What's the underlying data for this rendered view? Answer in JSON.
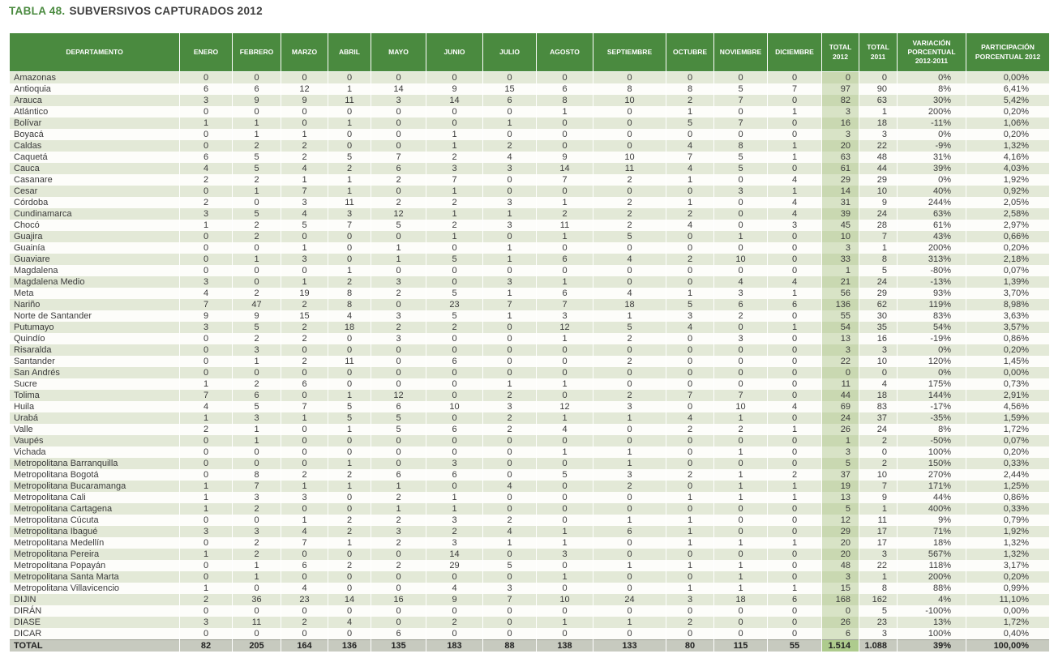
{
  "title": {
    "label": "TABLA 48.",
    "text": "SUBVERSIVOS CAPTURADOS 2012"
  },
  "colors": {
    "green": "#4a8a3f",
    "title_text": "#3d3d3d",
    "header_text": "#ffffff",
    "text": "#3a3a3a",
    "row_tint": "#e3e9d7",
    "row_plain": "#fdfdfa",
    "t12_tint": "#c9d8b1",
    "t12_plain": "#d8e3c6",
    "total_bg": "#c7cabf",
    "total_t12": "#aecb8d"
  },
  "table": {
    "columns": [
      {
        "key": "departamento",
        "label": "DEPARTAMENTO"
      },
      {
        "key": "enero",
        "label": "ENERO"
      },
      {
        "key": "febrero",
        "label": "FEBRERO"
      },
      {
        "key": "marzo",
        "label": "MARZO"
      },
      {
        "key": "abril",
        "label": "ABRIL"
      },
      {
        "key": "mayo",
        "label": "MAYO"
      },
      {
        "key": "junio",
        "label": "JUNIO"
      },
      {
        "key": "julio",
        "label": "JULIO"
      },
      {
        "key": "agosto",
        "label": "AGOSTO"
      },
      {
        "key": "septiembre",
        "label": "SEPTIEMBRE"
      },
      {
        "key": "octubre",
        "label": "OCTUBRE"
      },
      {
        "key": "noviembre",
        "label": "NOVIEMBRE"
      },
      {
        "key": "diciembre",
        "label": "DICIEMBRE"
      },
      {
        "key": "total_2012",
        "label": "TOTAL\n2012"
      },
      {
        "key": "total_2011",
        "label": "TOTAL\n2011"
      },
      {
        "key": "variacion_porcentual",
        "label": "VARIACIÓN\nPORCENTUAL\n2012-2011"
      },
      {
        "key": "participacion_porcentual",
        "label": "PARTICIPACIÓN\nPORCENTUAL 2012"
      }
    ],
    "rows": [
      [
        "Amazonas",
        0,
        0,
        0,
        0,
        0,
        0,
        0,
        0,
        0,
        0,
        0,
        0,
        "0",
        "0",
        "0%",
        "0,00%"
      ],
      [
        "Antioquia",
        6,
        6,
        12,
        1,
        14,
        9,
        15,
        6,
        8,
        8,
        5,
        7,
        "97",
        "90",
        "8%",
        "6,41%"
      ],
      [
        "Arauca",
        3,
        9,
        9,
        11,
        3,
        14,
        6,
        8,
        10,
        2,
        7,
        0,
        "82",
        "63",
        "30%",
        "5,42%"
      ],
      [
        "Atlántico",
        0,
        0,
        0,
        0,
        0,
        0,
        0,
        1,
        0,
        1,
        0,
        1,
        "3",
        "1",
        "200%",
        "0,20%"
      ],
      [
        "Bolívar",
        1,
        1,
        0,
        1,
        0,
        0,
        1,
        0,
        0,
        5,
        7,
        0,
        "16",
        "18",
        "-11%",
        "1,06%"
      ],
      [
        "Boyacá",
        0,
        1,
        1,
        0,
        0,
        1,
        0,
        0,
        0,
        0,
        0,
        0,
        "3",
        "3",
        "0%",
        "0,20%"
      ],
      [
        "Caldas",
        0,
        2,
        2,
        0,
        0,
        1,
        2,
        0,
        0,
        4,
        8,
        1,
        "20",
        "22",
        "-9%",
        "1,32%"
      ],
      [
        "Caquetá",
        6,
        5,
        2,
        5,
        7,
        2,
        4,
        9,
        10,
        7,
        5,
        1,
        "63",
        "48",
        "31%",
        "4,16%"
      ],
      [
        "Cauca",
        4,
        5,
        4,
        2,
        6,
        3,
        3,
        14,
        11,
        4,
        5,
        0,
        "61",
        "44",
        "39%",
        "4,03%"
      ],
      [
        "Casanare",
        2,
        2,
        1,
        1,
        2,
        7,
        0,
        7,
        2,
        1,
        0,
        4,
        "29",
        "29",
        "0%",
        "1,92%"
      ],
      [
        "Cesar",
        0,
        1,
        7,
        1,
        0,
        1,
        0,
        0,
        0,
        0,
        3,
        1,
        "14",
        "10",
        "40%",
        "0,92%"
      ],
      [
        "Córdoba",
        2,
        0,
        3,
        11,
        2,
        2,
        3,
        1,
        2,
        1,
        0,
        4,
        "31",
        "9",
        "244%",
        "2,05%"
      ],
      [
        "Cundinamarca",
        3,
        5,
        4,
        3,
        12,
        1,
        1,
        2,
        2,
        2,
        0,
        4,
        "39",
        "24",
        "63%",
        "2,58%"
      ],
      [
        "Chocó",
        1,
        2,
        5,
        7,
        5,
        2,
        3,
        11,
        2,
        4,
        0,
        3,
        "45",
        "28",
        "61%",
        "2,97%"
      ],
      [
        "Guajira",
        0,
        2,
        0,
        0,
        0,
        1,
        0,
        1,
        5,
        0,
        1,
        0,
        "10",
        "7",
        "43%",
        "0,66%"
      ],
      [
        "Guainía",
        0,
        0,
        1,
        0,
        1,
        0,
        1,
        0,
        0,
        0,
        0,
        0,
        "3",
        "1",
        "200%",
        "0,20%"
      ],
      [
        "Guaviare",
        0,
        1,
        3,
        0,
        1,
        5,
        1,
        6,
        4,
        2,
        10,
        0,
        "33",
        "8",
        "313%",
        "2,18%"
      ],
      [
        "Magdalena",
        0,
        0,
        0,
        1,
        0,
        0,
        0,
        0,
        0,
        0,
        0,
        0,
        "1",
        "5",
        "-80%",
        "0,07%"
      ],
      [
        "Magdalena Medio",
        3,
        0,
        1,
        2,
        3,
        0,
        3,
        1,
        0,
        0,
        4,
        4,
        "21",
        "24",
        "-13%",
        "1,39%"
      ],
      [
        "Meta",
        4,
        2,
        19,
        8,
        2,
        5,
        1,
        6,
        4,
        1,
        3,
        1,
        "56",
        "29",
        "93%",
        "3,70%"
      ],
      [
        "Nariño",
        7,
        47,
        2,
        8,
        0,
        23,
        7,
        7,
        18,
        5,
        6,
        6,
        "136",
        "62",
        "119%",
        "8,98%"
      ],
      [
        "Norte de Santander",
        9,
        9,
        15,
        4,
        3,
        5,
        1,
        3,
        1,
        3,
        2,
        0,
        "55",
        "30",
        "83%",
        "3,63%"
      ],
      [
        "Putumayo",
        3,
        5,
        2,
        18,
        2,
        2,
        0,
        12,
        5,
        4,
        0,
        1,
        "54",
        "35",
        "54%",
        "3,57%"
      ],
      [
        "Quindío",
        0,
        2,
        2,
        0,
        3,
        0,
        0,
        1,
        2,
        0,
        3,
        0,
        "13",
        "16",
        "-19%",
        "0,86%"
      ],
      [
        "Risaralda",
        0,
        3,
        0,
        0,
        0,
        0,
        0,
        0,
        0,
        0,
        0,
        0,
        "3",
        "3",
        "0%",
        "0,20%"
      ],
      [
        "Santander",
        0,
        1,
        2,
        11,
        0,
        6,
        0,
        0,
        2,
        0,
        0,
        0,
        "22",
        "10",
        "120%",
        "1,45%"
      ],
      [
        "San Andrés",
        0,
        0,
        0,
        0,
        0,
        0,
        0,
        0,
        0,
        0,
        0,
        0,
        "0",
        "0",
        "0%",
        "0,00%"
      ],
      [
        "Sucre",
        1,
        2,
        6,
        0,
        0,
        0,
        1,
        1,
        0,
        0,
        0,
        0,
        "11",
        "4",
        "175%",
        "0,73%"
      ],
      [
        "Tolima",
        7,
        6,
        0,
        1,
        12,
        0,
        2,
        0,
        2,
        7,
        7,
        0,
        "44",
        "18",
        "144%",
        "2,91%"
      ],
      [
        "Huila",
        4,
        5,
        7,
        5,
        6,
        10,
        3,
        12,
        3,
        0,
        10,
        4,
        "69",
        "83",
        "-17%",
        "4,56%"
      ],
      [
        "Urabá",
        1,
        3,
        1,
        5,
        5,
        0,
        2,
        1,
        1,
        4,
        1,
        0,
        "24",
        "37",
        "-35%",
        "1,59%"
      ],
      [
        "Valle",
        2,
        1,
        0,
        1,
        5,
        6,
        2,
        4,
        0,
        2,
        2,
        1,
        "26",
        "24",
        "8%",
        "1,72%"
      ],
      [
        "Vaupés",
        0,
        1,
        0,
        0,
        0,
        0,
        0,
        0,
        0,
        0,
        0,
        0,
        "1",
        "2",
        "-50%",
        "0,07%"
      ],
      [
        "Vichada",
        0,
        0,
        0,
        0,
        0,
        0,
        0,
        1,
        1,
        0,
        1,
        0,
        "3",
        "0",
        "100%",
        "0,20%"
      ],
      [
        "Metropolitana Barranquilla",
        0,
        0,
        0,
        1,
        0,
        3,
        0,
        0,
        1,
        0,
        0,
        0,
        "5",
        "2",
        "150%",
        "0,33%"
      ],
      [
        "Metropolitana Bogotá",
        0,
        8,
        2,
        2,
        6,
        6,
        0,
        5,
        3,
        2,
        1,
        2,
        "37",
        "10",
        "270%",
        "2,44%"
      ],
      [
        "Metropolitana Bucaramanga",
        1,
        7,
        1,
        1,
        1,
        0,
        4,
        0,
        2,
        0,
        1,
        1,
        "19",
        "7",
        "171%",
        "1,25%"
      ],
      [
        "Metropolitana Cali",
        1,
        3,
        3,
        0,
        2,
        1,
        0,
        0,
        0,
        1,
        1,
        1,
        "13",
        "9",
        "44%",
        "0,86%"
      ],
      [
        "Metropolitana Cartagena",
        1,
        2,
        0,
        0,
        1,
        1,
        0,
        0,
        0,
        0,
        0,
        0,
        "5",
        "1",
        "400%",
        "0,33%"
      ],
      [
        "Metropolitana Cúcuta",
        0,
        0,
        1,
        2,
        2,
        3,
        2,
        0,
        1,
        1,
        0,
        0,
        "12",
        "11",
        "9%",
        "0,79%"
      ],
      [
        "Metropolitana Ibagué",
        3,
        3,
        4,
        2,
        3,
        2,
        4,
        1,
        6,
        1,
        0,
        0,
        "29",
        "17",
        "71%",
        "1,92%"
      ],
      [
        "Metropolitana Medellín",
        0,
        2,
        7,
        1,
        2,
        3,
        1,
        1,
        0,
        1,
        1,
        1,
        "20",
        "17",
        "18%",
        "1,32%"
      ],
      [
        "Metropolitana Pereira",
        1,
        2,
        0,
        0,
        0,
        14,
        0,
        3,
        0,
        0,
        0,
        0,
        "20",
        "3",
        "567%",
        "1,32%"
      ],
      [
        "Metropolitana Popayán",
        0,
        1,
        6,
        2,
        2,
        29,
        5,
        0,
        1,
        1,
        1,
        0,
        "48",
        "22",
        "118%",
        "3,17%"
      ],
      [
        "Metropolitana Santa Marta",
        0,
        1,
        0,
        0,
        0,
        0,
        0,
        1,
        0,
        0,
        1,
        0,
        "3",
        "1",
        "200%",
        "0,20%"
      ],
      [
        "Metropolitana Villavicencio",
        1,
        0,
        4,
        0,
        0,
        4,
        3,
        0,
        0,
        1,
        1,
        1,
        "15",
        "8",
        "88%",
        "0,99%"
      ],
      [
        "DIJIN",
        2,
        36,
        23,
        14,
        16,
        9,
        7,
        10,
        24,
        3,
        18,
        6,
        "168",
        "162",
        "4%",
        "11,10%"
      ],
      [
        "DIRÁN",
        0,
        0,
        0,
        0,
        0,
        0,
        0,
        0,
        0,
        0,
        0,
        0,
        "0",
        "5",
        "-100%",
        "0,00%"
      ],
      [
        "DIASE",
        3,
        11,
        2,
        4,
        0,
        2,
        0,
        1,
        1,
        2,
        0,
        0,
        "26",
        "23",
        "13%",
        "1,72%"
      ],
      [
        "DICAR",
        0,
        0,
        0,
        0,
        6,
        0,
        0,
        0,
        0,
        0,
        0,
        0,
        "6",
        "3",
        "100%",
        "0,40%"
      ]
    ],
    "total_row": [
      "TOTAL",
      "82",
      "205",
      "164",
      "136",
      "135",
      "183",
      "88",
      "138",
      "133",
      "80",
      "115",
      "55",
      "1.514",
      "1.088",
      "39%",
      "100,00%"
    ]
  }
}
